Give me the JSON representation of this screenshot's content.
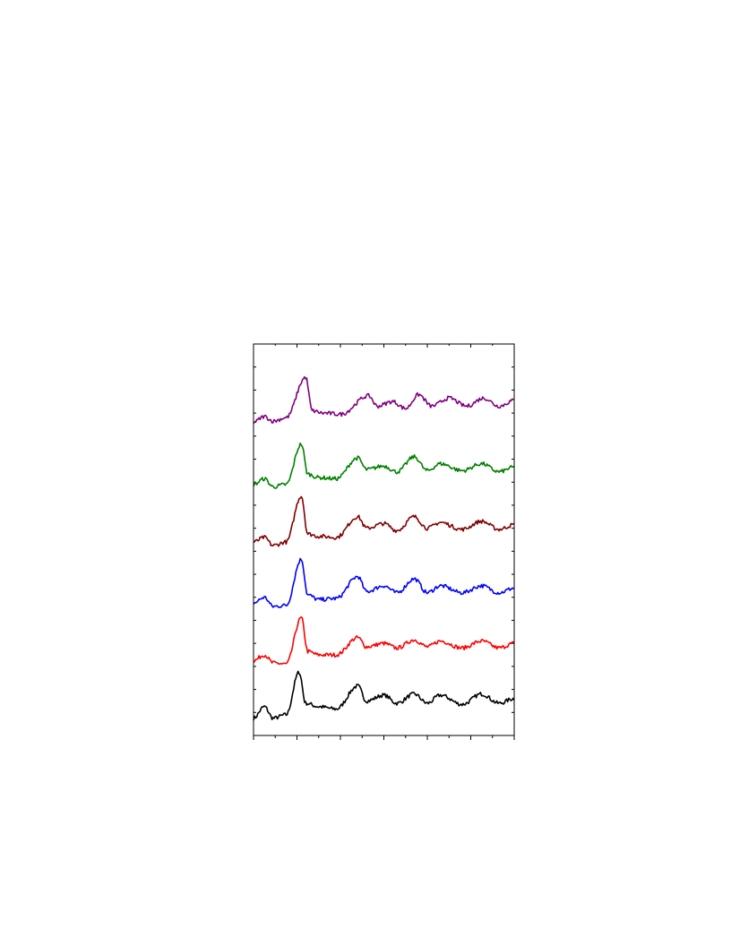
{
  "chart_data": {
    "type": "line",
    "title": "",
    "xlabel": "",
    "ylabel": "",
    "xlim": [
      0,
      12
    ],
    "ylim": [
      0,
      34
    ],
    "x_major_ticks": [
      0,
      2,
      4,
      6,
      8,
      10,
      12
    ],
    "x_minor_ticks": [
      1,
      3,
      5,
      7,
      9,
      11
    ],
    "y_ticks": [
      2,
      4,
      6,
      8,
      10,
      12,
      14,
      16,
      18,
      20,
      22,
      24,
      26,
      28,
      30,
      32
    ],
    "grid": false,
    "legend": "none",
    "series": [
      {
        "color": "#000000",
        "x": [
          0,
          0.5,
          0.9,
          1.5,
          2.1,
          2.4,
          3.0,
          3.8,
          4.8,
          5.2,
          6.0,
          6.6,
          7.4,
          8.0,
          8.6,
          9.6,
          10.5,
          11.3,
          12.0
        ],
        "y": [
          1.5,
          2.5,
          1.5,
          1.8,
          5.5,
          2.8,
          2.5,
          2.3,
          4.3,
          3.0,
          3.5,
          2.8,
          3.6,
          2.8,
          3.5,
          2.7,
          3.6,
          2.8,
          3.2
        ]
      },
      {
        "color": "#ff0000",
        "x": [
          0,
          0.5,
          0.9,
          1.5,
          2.2,
          2.5,
          3.0,
          3.8,
          4.8,
          5.2,
          6.0,
          6.6,
          7.4,
          8.0,
          8.6,
          9.6,
          10.5,
          11.3,
          12.0
        ],
        "y": [
          6.5,
          7.0,
          6.3,
          6.2,
          10.2,
          7.3,
          7.0,
          7.0,
          8.5,
          7.7,
          8.0,
          7.6,
          8.3,
          7.7,
          8.2,
          7.6,
          8.2,
          7.6,
          8.0
        ]
      },
      {
        "color": "#0000ff",
        "x": [
          0,
          0.5,
          0.9,
          1.5,
          2.2,
          2.5,
          3.0,
          3.8,
          4.8,
          5.2,
          6.0,
          6.6,
          7.4,
          8.0,
          8.6,
          9.6,
          10.5,
          11.3,
          12.0
        ],
        "y": [
          11.5,
          12.0,
          11.2,
          11.3,
          15.3,
          12.2,
          11.8,
          11.9,
          13.8,
          12.5,
          13.0,
          12.4,
          13.6,
          12.4,
          13.0,
          12.4,
          13.0,
          12.4,
          12.8
        ]
      },
      {
        "color": "#800000",
        "x": [
          0,
          0.5,
          0.9,
          1.5,
          2.2,
          2.5,
          3.0,
          3.8,
          4.8,
          5.2,
          6.0,
          6.6,
          7.4,
          8.0,
          8.6,
          9.6,
          10.5,
          11.3,
          12.0
        ],
        "y": [
          16.8,
          17.2,
          16.5,
          16.8,
          20.8,
          17.5,
          17.3,
          17.2,
          19.0,
          18.0,
          18.4,
          17.8,
          19.0,
          18.0,
          18.5,
          17.9,
          18.6,
          17.9,
          18.3
        ]
      },
      {
        "color": "#008000",
        "x": [
          0,
          0.5,
          0.9,
          1.5,
          2.2,
          2.5,
          3.0,
          3.8,
          4.8,
          5.2,
          6.0,
          6.6,
          7.4,
          8.0,
          8.6,
          9.6,
          10.5,
          11.3,
          12.0
        ],
        "y": [
          21.8,
          22.3,
          21.6,
          21.8,
          25.3,
          22.7,
          22.4,
          22.3,
          24.1,
          23.1,
          23.4,
          22.9,
          24.2,
          23.0,
          23.6,
          23.0,
          23.6,
          22.9,
          23.3
        ]
      },
      {
        "color": "#800080",
        "x": [
          0,
          0.5,
          0.9,
          1.5,
          2.4,
          2.7,
          3.2,
          4.0,
          5.3,
          5.7,
          6.4,
          7.0,
          7.6,
          8.2,
          9.0,
          9.8,
          10.6,
          11.3,
          12.0
        ],
        "y": [
          27.2,
          27.7,
          27.3,
          27.6,
          31.1,
          28.2,
          28.0,
          27.9,
          29.5,
          28.6,
          29.0,
          28.4,
          29.6,
          28.6,
          29.3,
          28.6,
          29.3,
          28.6,
          29.1
        ]
      }
    ]
  }
}
